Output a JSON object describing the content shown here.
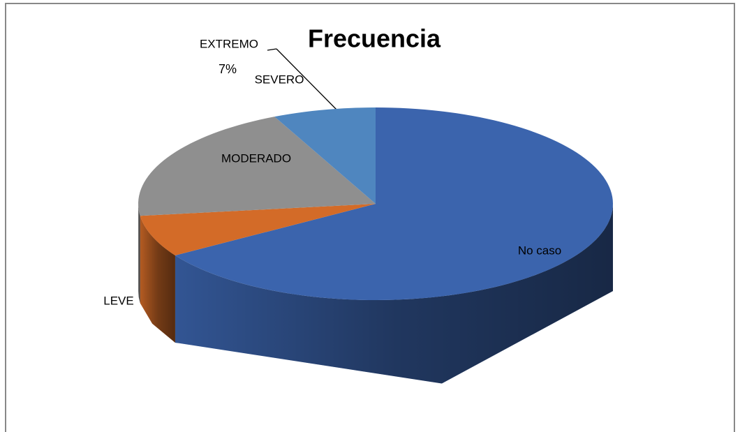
{
  "chart_data": {
    "type": "pie",
    "title": "Frecuencia",
    "categories": [
      "No caso",
      "LEVE",
      "MODERADO",
      "SEVERO",
      "EXTREMO"
    ],
    "values": [
      66,
      7,
      20,
      0,
      7
    ],
    "value_labels": [
      null,
      null,
      null,
      null,
      "7%"
    ],
    "colors": [
      "#3b64ad",
      "#d36b28",
      "#8f8f8f",
      "#f0b400",
      "#4f86bf"
    ],
    "three_d": true
  }
}
